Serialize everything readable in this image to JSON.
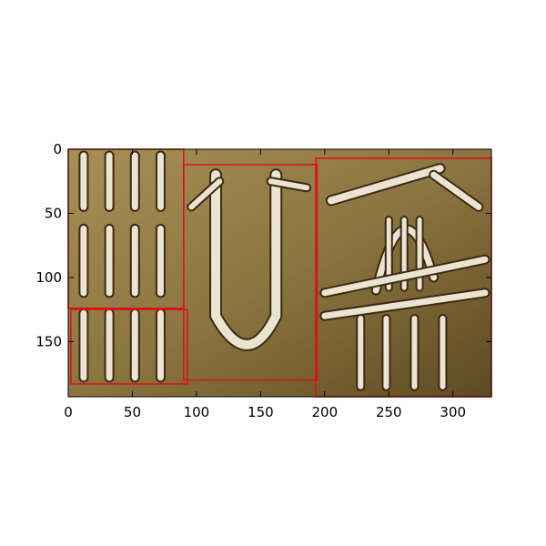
{
  "chart_data": {
    "type": "image",
    "xlim": [
      0,
      330
    ],
    "ylim": [
      193,
      0
    ],
    "y_inverted": true,
    "x_ticks": [
      0,
      50,
      100,
      150,
      200,
      250,
      300
    ],
    "y_ticks": [
      0,
      50,
      100,
      150
    ],
    "x_tick_labels": [
      "0",
      "50",
      "100",
      "150",
      "200",
      "250",
      "300"
    ],
    "y_tick_labels": [
      "0",
      "50",
      "100",
      "150"
    ],
    "grid": false,
    "image_content": "engraved-stone-glyphs",
    "box_color": "#e01010",
    "boxes": [
      {
        "x0": 0,
        "y0": 0,
        "x1": 90,
        "y1": 124
      },
      {
        "x0": 2,
        "y0": 125,
        "x1": 93,
        "y1": 183
      },
      {
        "x0": 90,
        "y0": 12,
        "x1": 194,
        "y1": 180
      },
      {
        "x0": 193,
        "y0": 7,
        "x1": 330,
        "y1": 193
      }
    ]
  },
  "colors": {
    "stone_base": "#8b7540",
    "stone_light": "#a88f55",
    "stone_dark": "#5e4a22",
    "carving_light": "#ece4d2",
    "carving_shadow": "#3b2a12",
    "rust": "#8a3a1c"
  }
}
